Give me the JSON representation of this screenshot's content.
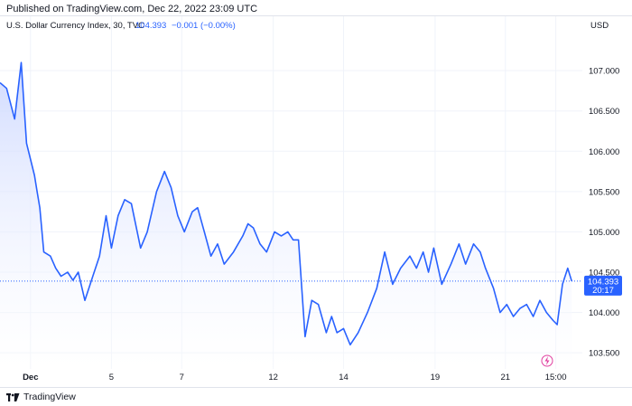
{
  "header": {
    "published_text": "Published on TradingView.com, Dec 22, 2022 23:09 UTC"
  },
  "legend": {
    "symbol": "U.S. Dollar Currency Index, 30, TVC",
    "last": "104.393",
    "change": "−0.001 (−0.00%)"
  },
  "price_label": {
    "value": "104.393",
    "countdown": "20:17"
  },
  "footer": {
    "brand": "TradingView"
  },
  "colors": {
    "line": "#2962ff",
    "fill_top": "#c8d4ff",
    "fill_bottom": "#ffffff",
    "grid": "#f0f3fa",
    "axis_text": "#131722",
    "change": "#2962ff",
    "price_tag": "#2962ff"
  },
  "chart_data": {
    "type": "area",
    "ylabel": "USD",
    "ylim": [
      103.3,
      107.45
    ],
    "yticks": [
      103.5,
      104.0,
      104.5,
      105.0,
      105.5,
      106.0,
      106.5,
      107.0
    ],
    "ytick_labels": [
      "103.500",
      "104.000",
      "104.500",
      "105.000",
      "105.500",
      "106.000",
      "106.500",
      "107.000"
    ],
    "grid": true,
    "xtick_labels": [
      "Dec",
      "5",
      "7",
      "12",
      "14",
      "19",
      "21",
      "15:00"
    ],
    "xtick_index": [
      23,
      84,
      137,
      206,
      259,
      328,
      381,
      419
    ],
    "last_index": 431,
    "x": [
      0,
      5,
      11,
      16,
      20,
      26,
      28,
      30,
      33,
      38,
      42,
      46,
      51,
      55,
      59,
      64,
      70,
      75,
      80,
      84,
      89,
      94,
      99,
      106,
      111,
      118,
      124,
      129,
      134,
      139,
      145,
      149,
      154,
      159,
      164,
      169,
      176,
      183,
      187,
      191,
      196,
      201,
      207,
      212,
      217,
      221,
      225,
      230,
      235,
      240,
      246,
      250,
      254,
      259,
      264,
      270,
      277,
      284,
      290,
      296,
      302,
      309,
      314,
      319,
      323,
      327,
      333,
      340,
      346,
      351,
      357,
      362,
      366,
      372,
      377,
      382,
      387,
      392,
      397,
      402,
      407,
      412,
      417,
      420,
      424,
      428,
      431
    ],
    "values": [
      106.85,
      106.78,
      106.4,
      107.1,
      106.1,
      105.7,
      105.5,
      105.3,
      104.75,
      104.7,
      104.55,
      104.45,
      104.5,
      104.4,
      104.5,
      104.15,
      104.45,
      104.7,
      105.2,
      104.8,
      105.2,
      105.4,
      105.35,
      104.8,
      105.0,
      105.5,
      105.75,
      105.55,
      105.2,
      105.0,
      105.25,
      105.3,
      105.0,
      104.7,
      104.85,
      104.6,
      104.75,
      104.95,
      105.1,
      105.05,
      104.85,
      104.75,
      105.0,
      104.95,
      105.0,
      104.9,
      104.9,
      103.7,
      104.15,
      104.1,
      103.75,
      103.95,
      103.75,
      103.8,
      103.6,
      103.75,
      104.0,
      104.3,
      104.75,
      104.35,
      104.55,
      104.7,
      104.55,
      104.75,
      104.5,
      104.8,
      104.35,
      104.6,
      104.85,
      104.6,
      104.85,
      104.75,
      104.55,
      104.3,
      104.0,
      104.1,
      103.95,
      104.05,
      104.1,
      103.95,
      104.15,
      104.0,
      103.9,
      103.85,
      104.35,
      104.55,
      104.39
    ]
  }
}
